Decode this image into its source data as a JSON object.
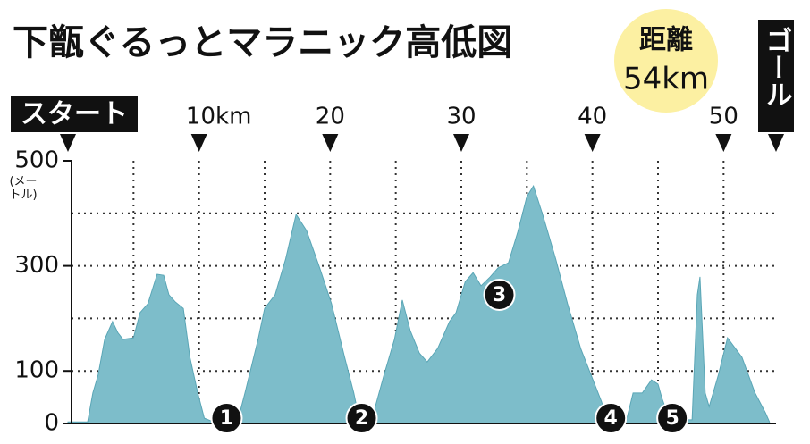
{
  "chart_data": {
    "type": "area",
    "title": "下甑ぐるっとマラニック高低図",
    "distance_title": "距離",
    "distance": "54km",
    "y_unit": "(メートル)",
    "start": {
      "value": 0,
      "label": "スタート"
    },
    "goal": {
      "value": 54,
      "label": "ゴール"
    },
    "xlim": [
      0,
      54
    ],
    "ylim": [
      0,
      500
    ],
    "xticks": [
      {
        "value": 10,
        "label": "10km"
      },
      20,
      30,
      40,
      50
    ],
    "yticks": [
      0,
      100,
      300,
      500
    ],
    "xgrid": [
      5,
      10,
      15,
      20,
      25,
      30,
      35,
      40,
      45,
      50
    ],
    "ygrid": [
      100,
      200,
      300,
      400
    ],
    "color": "#7dbdca",
    "x": [
      0,
      1.5,
      1.9,
      2.3,
      2.8,
      3.4,
      3.8,
      4.2,
      5.0,
      5.5,
      6.1,
      6.8,
      7.3,
      7.7,
      8.2,
      8.8,
      9.3,
      9.9,
      10.4,
      11.1,
      13.0,
      13.5,
      14.5,
      15.0,
      15.8,
      16.6,
      17.4,
      18.2,
      19.2,
      20.1,
      21.1,
      21.8,
      22.2,
      23.2,
      24.1,
      24.9,
      25.5,
      26.1,
      26.8,
      27.4,
      28.2,
      29.1,
      29.6,
      30.3,
      30.9,
      31.5,
      32.2,
      32.8,
      33.6,
      34.3,
      35.0,
      35.5,
      36.2,
      37.2,
      38.1,
      39.1,
      39.9,
      40.7,
      41.1,
      42.6,
      43.1,
      43.8,
      44.5,
      45.0,
      45.3,
      45.9,
      47.6,
      48.0,
      48.2,
      48.6,
      48.9,
      49.6,
      50.3,
      51.4,
      52.4,
      53.2,
      53.5
    ],
    "values": [
      3,
      3,
      58,
      92,
      160,
      194,
      173,
      160,
      163,
      211,
      228,
      284,
      282,
      245,
      231,
      219,
      126,
      58,
      10,
      3,
      10,
      58,
      160,
      219,
      245,
      313,
      398,
      367,
      296,
      228,
      126,
      58,
      10,
      10,
      92,
      160,
      235,
      177,
      134,
      117,
      143,
      194,
      211,
      270,
      287,
      262,
      279,
      296,
      306,
      364,
      432,
      452,
      398,
      313,
      228,
      143,
      92,
      41,
      7,
      7,
      58,
      58,
      83,
      75,
      48,
      7,
      7,
      245,
      279,
      58,
      32,
      92,
      163,
      126,
      58,
      20,
      3
    ],
    "markers": [
      {
        "label": "1",
        "x": 12.1,
        "y": 7
      },
      {
        "label": "2",
        "x": 22.4,
        "y": 7
      },
      {
        "label": "3",
        "x": 32.9,
        "y": 245
      },
      {
        "label": "4",
        "x": 41.4,
        "y": 7
      },
      {
        "label": "5",
        "x": 46.1,
        "y": 7
      }
    ]
  }
}
